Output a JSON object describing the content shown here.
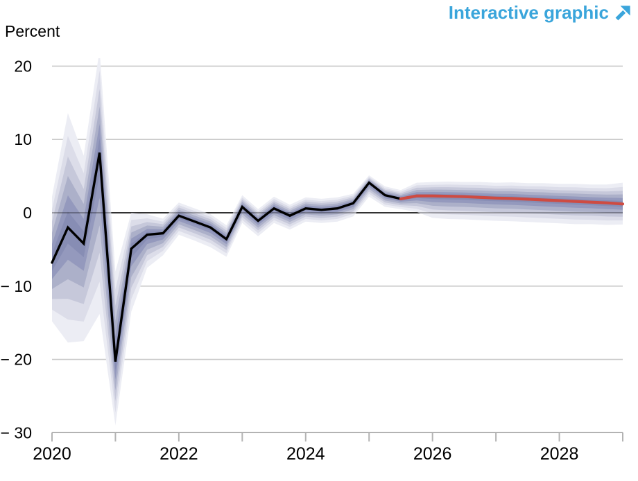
{
  "header": {
    "link_label": "Interactive graphic",
    "accent_color": "#3AA5DB"
  },
  "chart_data": {
    "type": "line",
    "title": "",
    "ylabel": "Percent",
    "xlabel": "",
    "xlim": [
      2020,
      2029
    ],
    "ylim": [
      -30,
      20.5
    ],
    "grid": "horizontal",
    "zero_line": true,
    "y_ticks": [
      {
        "value": 20,
        "label": "20"
      },
      {
        "value": 10,
        "label": "10"
      },
      {
        "value": 0,
        "label": "0"
      },
      {
        "value": -10,
        "label": "− 10"
      },
      {
        "value": -20,
        "label": "− 20"
      },
      {
        "value": -30,
        "label": "− 30"
      }
    ],
    "x_ticks": [
      2020,
      2021,
      2022,
      2023,
      2024,
      2025,
      2026,
      2027,
      2028,
      2029
    ],
    "x_labels": [
      {
        "value": 2020,
        "label": "2020"
      },
      {
        "value": 2022,
        "label": "2022"
      },
      {
        "value": 2024,
        "label": "2024"
      },
      {
        "value": 2026,
        "label": "2026"
      },
      {
        "value": 2028,
        "label": "2028"
      }
    ],
    "series": [
      {
        "name": "history",
        "color": "#000000",
        "x": [
          2020.0,
          2020.25,
          2020.5,
          2020.75,
          2021.0,
          2021.25,
          2021.5,
          2021.75,
          2022.0,
          2022.25,
          2022.5,
          2022.75,
          2023.0,
          2023.25,
          2023.5,
          2023.75,
          2024.0,
          2024.25,
          2024.5,
          2024.75,
          2025.0,
          2025.25,
          2025.5
        ],
        "values": [
          -6.8,
          -2.0,
          -4.2,
          8.2,
          -20.3,
          -4.9,
          -3.0,
          -2.8,
          -0.4,
          -1.2,
          -2.0,
          -3.6,
          0.8,
          -1.1,
          0.6,
          -0.4,
          0.6,
          0.4,
          0.6,
          1.3,
          4.1,
          2.4,
          1.9
        ]
      },
      {
        "name": "forecast",
        "color": "#CE4B42",
        "x": [
          2025.5,
          2025.75,
          2026.0,
          2026.25,
          2026.5,
          2026.75,
          2027.0,
          2027.25,
          2027.5,
          2027.75,
          2028.0,
          2028.25,
          2028.5,
          2028.75,
          2029.0
        ],
        "values": [
          1.9,
          2.3,
          2.3,
          2.25,
          2.2,
          2.1,
          2.0,
          1.95,
          1.85,
          1.75,
          1.65,
          1.55,
          1.45,
          1.35,
          1.2
        ]
      }
    ],
    "bands": {
      "legend": "nested uncertainty bands around history and forecast",
      "fractions": [
        1.0,
        0.8,
        0.62,
        0.45,
        0.28,
        0.14
      ],
      "shades": [
        "#ECEDF4",
        "#DCDDE9",
        "#C6C8DA",
        "#ACB0C9",
        "#9499BD",
        "#878DB4"
      ],
      "points": [
        {
          "x": 2020.0,
          "base": -6.8,
          "up": 9.0,
          "lo": 8.0
        },
        {
          "x": 2020.25,
          "base": -2.0,
          "up": 15.6,
          "lo": 15.7
        },
        {
          "x": 2020.5,
          "base": -4.2,
          "up": 12.0,
          "lo": 13.3
        },
        {
          "x": 2020.75,
          "base": 8.2,
          "up": 14.0,
          "lo": 22.0
        },
        {
          "x": 2021.0,
          "base": -20.3,
          "up": 12.3,
          "lo": 8.7
        },
        {
          "x": 2021.25,
          "base": -4.9,
          "up": 4.9,
          "lo": 8.6
        },
        {
          "x": 2021.5,
          "base": -3.0,
          "up": 2.8,
          "lo": 4.5
        },
        {
          "x": 2021.75,
          "base": -2.8,
          "up": 2.0,
          "lo": 3.0
        },
        {
          "x": 2022.0,
          "base": -0.4,
          "up": 1.8,
          "lo": 2.6
        },
        {
          "x": 2022.25,
          "base": -1.2,
          "up": 1.8,
          "lo": 2.6
        },
        {
          "x": 2022.5,
          "base": -2.0,
          "up": 1.8,
          "lo": 2.7
        },
        {
          "x": 2022.75,
          "base": -3.6,
          "up": 1.9,
          "lo": 2.4
        },
        {
          "x": 2023.0,
          "base": 0.8,
          "up": 1.6,
          "lo": 2.2
        },
        {
          "x": 2023.25,
          "base": -1.1,
          "up": 1.6,
          "lo": 2.1
        },
        {
          "x": 2023.5,
          "base": 0.6,
          "up": 1.6,
          "lo": 2.0
        },
        {
          "x": 2023.75,
          "base": -0.4,
          "up": 1.5,
          "lo": 1.9
        },
        {
          "x": 2024.0,
          "base": 0.6,
          "up": 1.5,
          "lo": 1.8
        },
        {
          "x": 2024.25,
          "base": 0.4,
          "up": 1.5,
          "lo": 1.8
        },
        {
          "x": 2024.5,
          "base": 0.6,
          "up": 1.5,
          "lo": 1.8
        },
        {
          "x": 2024.75,
          "base": 1.3,
          "up": 1.3,
          "lo": 1.8
        },
        {
          "x": 2025.0,
          "base": 4.1,
          "up": 1.0,
          "lo": 1.9
        },
        {
          "x": 2025.25,
          "base": 2.4,
          "up": 1.2,
          "lo": 1.6
        },
        {
          "x": 2025.5,
          "base": 1.9,
          "up": 1.2,
          "lo": 1.4
        },
        {
          "x": 2025.75,
          "base": 2.3,
          "up": 1.8,
          "lo": 2.2
        },
        {
          "x": 2026.0,
          "base": 2.3,
          "up": 1.9,
          "lo": 3.0
        },
        {
          "x": 2026.25,
          "base": 2.25,
          "up": 2.0,
          "lo": 3.1
        },
        {
          "x": 2026.5,
          "base": 2.2,
          "up": 2.0,
          "lo": 3.1
        },
        {
          "x": 2026.75,
          "base": 2.1,
          "up": 2.1,
          "lo": 3.1
        },
        {
          "x": 2027.0,
          "base": 2.0,
          "up": 2.1,
          "lo": 3.1
        },
        {
          "x": 2027.25,
          "base": 1.95,
          "up": 2.2,
          "lo": 3.1
        },
        {
          "x": 2027.5,
          "base": 1.85,
          "up": 2.2,
          "lo": 3.1
        },
        {
          "x": 2027.75,
          "base": 1.75,
          "up": 2.3,
          "lo": 3.1
        },
        {
          "x": 2028.0,
          "base": 1.65,
          "up": 2.3,
          "lo": 3.1
        },
        {
          "x": 2028.25,
          "base": 1.55,
          "up": 2.4,
          "lo": 3.1
        },
        {
          "x": 2028.5,
          "base": 1.45,
          "up": 2.4,
          "lo": 3.0
        },
        {
          "x": 2028.75,
          "base": 1.35,
          "up": 2.5,
          "lo": 3.0
        },
        {
          "x": 2029.0,
          "base": 1.2,
          "up": 2.9,
          "lo": 2.8
        }
      ]
    },
    "colors": {
      "grid": "#C9C9C9",
      "axis": "#B3B3B3",
      "zero_line": "#000000"
    }
  }
}
